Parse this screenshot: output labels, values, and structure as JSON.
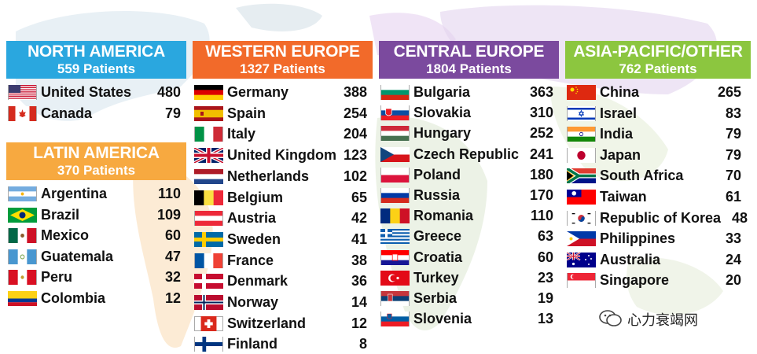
{
  "colors": {
    "north_america": "#2aa7df",
    "latin_america": "#f7a940",
    "western_europe": "#f26a2a",
    "central_europe": "#7b4a9e",
    "asia_pacific": "#8cc63f"
  },
  "regions": [
    {
      "key": "north_america",
      "title": "NORTH AMERICA",
      "subtitle": "559 Patients",
      "countries": [
        {
          "name": "United States",
          "count": "480",
          "flag": "us-flag"
        },
        {
          "name": "Canada",
          "count": "79",
          "flag": "canada-flag"
        }
      ]
    },
    {
      "key": "latin_america",
      "title": "LATIN AMERICA",
      "subtitle": "370 Patients",
      "countries": [
        {
          "name": "Argentina",
          "count": "110",
          "flag": "argentina-flag"
        },
        {
          "name": "Brazil",
          "count": "109",
          "flag": "brazil-flag"
        },
        {
          "name": "Mexico",
          "count": "60",
          "flag": "mexico-flag"
        },
        {
          "name": "Guatemala",
          "count": "47",
          "flag": "guatemala-flag"
        },
        {
          "name": "Peru",
          "count": "32",
          "flag": "peru-flag"
        },
        {
          "name": "Colombia",
          "count": "12",
          "flag": "colombia-flag"
        }
      ]
    },
    {
      "key": "western_europe",
      "title": "WESTERN EUROPE",
      "subtitle": "1327 Patients",
      "countries": [
        {
          "name": "Germany",
          "count": "388",
          "flag": "germany-flag"
        },
        {
          "name": "Spain",
          "count": "254",
          "flag": "spain-flag"
        },
        {
          "name": "Italy",
          "count": "204",
          "flag": "italy-flag"
        },
        {
          "name": "United Kingdom",
          "count": "123",
          "flag": "uk-flag"
        },
        {
          "name": "Netherlands",
          "count": "102",
          "flag": "netherlands-flag"
        },
        {
          "name": "Belgium",
          "count": "65",
          "flag": "belgium-flag"
        },
        {
          "name": "Austria",
          "count": "42",
          "flag": "austria-flag"
        },
        {
          "name": "Sweden",
          "count": "41",
          "flag": "sweden-flag"
        },
        {
          "name": "France",
          "count": "38",
          "flag": "france-flag"
        },
        {
          "name": "Denmark",
          "count": "36",
          "flag": "denmark-flag"
        },
        {
          "name": "Norway",
          "count": "14",
          "flag": "norway-flag"
        },
        {
          "name": "Switzerland",
          "count": "12",
          "flag": "switzerland-flag"
        },
        {
          "name": "Finland",
          "count": "8",
          "flag": "finland-flag"
        }
      ]
    },
    {
      "key": "central_europe",
      "title": "CENTRAL EUROPE",
      "subtitle": "1804 Patients",
      "countries": [
        {
          "name": "Bulgaria",
          "count": "363",
          "flag": "bulgaria-flag"
        },
        {
          "name": "Slovakia",
          "count": "310",
          "flag": "slovakia-flag"
        },
        {
          "name": "Hungary",
          "count": "252",
          "flag": "hungary-flag"
        },
        {
          "name": "Czech Republic",
          "count": "241",
          "flag": "czech-flag"
        },
        {
          "name": "Poland",
          "count": "180",
          "flag": "poland-flag"
        },
        {
          "name": "Russia",
          "count": "170",
          "flag": "russia-flag"
        },
        {
          "name": "Romania",
          "count": "110",
          "flag": "romania-flag"
        },
        {
          "name": "Greece",
          "count": "63",
          "flag": "greece-flag"
        },
        {
          "name": "Croatia",
          "count": "60",
          "flag": "croatia-flag"
        },
        {
          "name": "Turkey",
          "count": "23",
          "flag": "turkey-flag"
        },
        {
          "name": "Serbia",
          "count": "19",
          "flag": "serbia-flag"
        },
        {
          "name": "Slovenia",
          "count": "13",
          "flag": "slovenia-flag"
        }
      ]
    },
    {
      "key": "asia_pacific",
      "title": "ASIA-PACIFIC/OTHER",
      "subtitle": "762 Patients",
      "countries": [
        {
          "name": "China",
          "count": "265",
          "flag": "china-flag"
        },
        {
          "name": "Israel",
          "count": "83",
          "flag": "israel-flag"
        },
        {
          "name": "India",
          "count": "79",
          "flag": "india-flag"
        },
        {
          "name": "Japan",
          "count": "79",
          "flag": "japan-flag"
        },
        {
          "name": "South Africa",
          "count": "70",
          "flag": "south-africa-flag"
        },
        {
          "name": "Taiwan",
          "count": "61",
          "flag": "taiwan-flag"
        },
        {
          "name": "Republic of Korea",
          "count": "48",
          "flag": "korea-flag"
        },
        {
          "name": "Philippines",
          "count": "33",
          "flag": "philippines-flag"
        },
        {
          "name": "Australia",
          "count": "24",
          "flag": "australia-flag"
        },
        {
          "name": "Singapore",
          "count": "20",
          "flag": "singapore-flag"
        }
      ]
    }
  ],
  "watermark": {
    "text": "心力衰竭网",
    "icon": "wechat-icon"
  }
}
